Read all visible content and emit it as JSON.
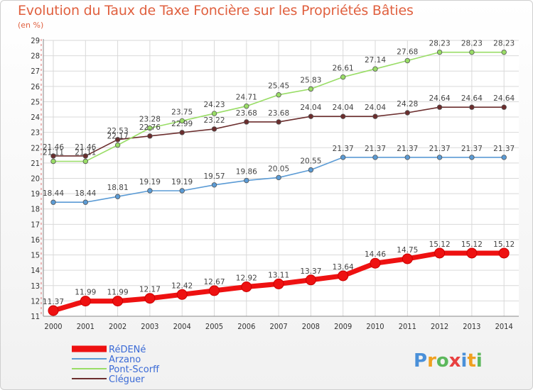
{
  "chart_data": {
    "type": "line",
    "title": "Evolution du Taux de Taxe Foncière sur les Propriétés Bâties",
    "subtitle": "(en %)",
    "x": [
      "2000",
      "2001",
      "2002",
      "2003",
      "2004",
      "2005",
      "2006",
      "2007",
      "2008",
      "2009",
      "2010",
      "2011",
      "2012",
      "2013",
      "2014"
    ],
    "ylim": [
      11,
      29
    ],
    "yticks": [
      11,
      12,
      13,
      14,
      15,
      16,
      17,
      18,
      19,
      20,
      21,
      22,
      23,
      24,
      25,
      26,
      27,
      28,
      29
    ],
    "grid": true,
    "legend_position": "bottom-left",
    "series": [
      {
        "name": "RéDENé",
        "color": "#ee1111",
        "values": [
          11.37,
          11.99,
          11.99,
          12.17,
          12.42,
          12.67,
          12.92,
          13.11,
          13.37,
          13.64,
          14.46,
          14.75,
          15.12,
          15.12,
          15.12
        ],
        "labels": [
          "11.37",
          "11.99",
          "11.99",
          "12.17",
          "12.42",
          "12.67",
          "12.92",
          "13.11",
          "13.37",
          "13.64",
          "14.46",
          "14.75",
          "15.12",
          "15.12",
          "15.12"
        ]
      },
      {
        "name": "Arzano",
        "color": "#5b9bd5",
        "values": [
          18.44,
          18.44,
          18.81,
          19.19,
          19.19,
          19.57,
          19.86,
          20.05,
          20.55,
          21.37,
          21.37,
          21.37,
          21.37,
          21.37,
          21.37
        ],
        "labels": [
          "18.44",
          "18.44",
          "18.81",
          "19.19",
          "19.19",
          "19.57",
          "19.86",
          "20.05",
          "20.55",
          "21.37",
          "21.37",
          "21.37",
          "21.37",
          "21.37",
          "21.37"
        ]
      },
      {
        "name": "Pont-Scorff",
        "color": "#99dd66",
        "values": [
          21.11,
          21.11,
          22.17,
          23.28,
          23.75,
          24.23,
          24.71,
          25.45,
          25.83,
          26.61,
          27.14,
          27.68,
          28.23,
          28.23,
          28.23
        ],
        "labels": [
          "21.11",
          "21.11",
          "22.17",
          "23.28",
          "23.75",
          "24.23",
          "24.71",
          "25.45",
          "25.83",
          "26.61",
          "27.14",
          "27.68",
          "28.23",
          "28.23",
          "28.23"
        ]
      },
      {
        "name": "Cléguer",
        "color": "#6b2d2d",
        "values": [
          21.46,
          21.46,
          22.53,
          22.76,
          22.99,
          23.22,
          23.68,
          23.68,
          24.04,
          24.04,
          24.04,
          24.28,
          24.64,
          24.64,
          24.64
        ],
        "labels": [
          "21.46",
          "21.46",
          "22.53",
          "22.76",
          "22.99",
          "23.22",
          "23.68",
          "23.68",
          "24.04",
          "24.04",
          "24.04",
          "24.28",
          "24.64",
          "24.64",
          "24.64"
        ]
      }
    ]
  },
  "logo": {
    "text": "Proxiti",
    "letters": [
      "P",
      "r",
      "o",
      "x",
      "i",
      "t",
      "i"
    ],
    "colors": [
      "#4a90d9",
      "#f0a020",
      "#5cb85c",
      "#e84040",
      "#4a90d9",
      "#f0a020",
      "#5cb85c"
    ]
  }
}
